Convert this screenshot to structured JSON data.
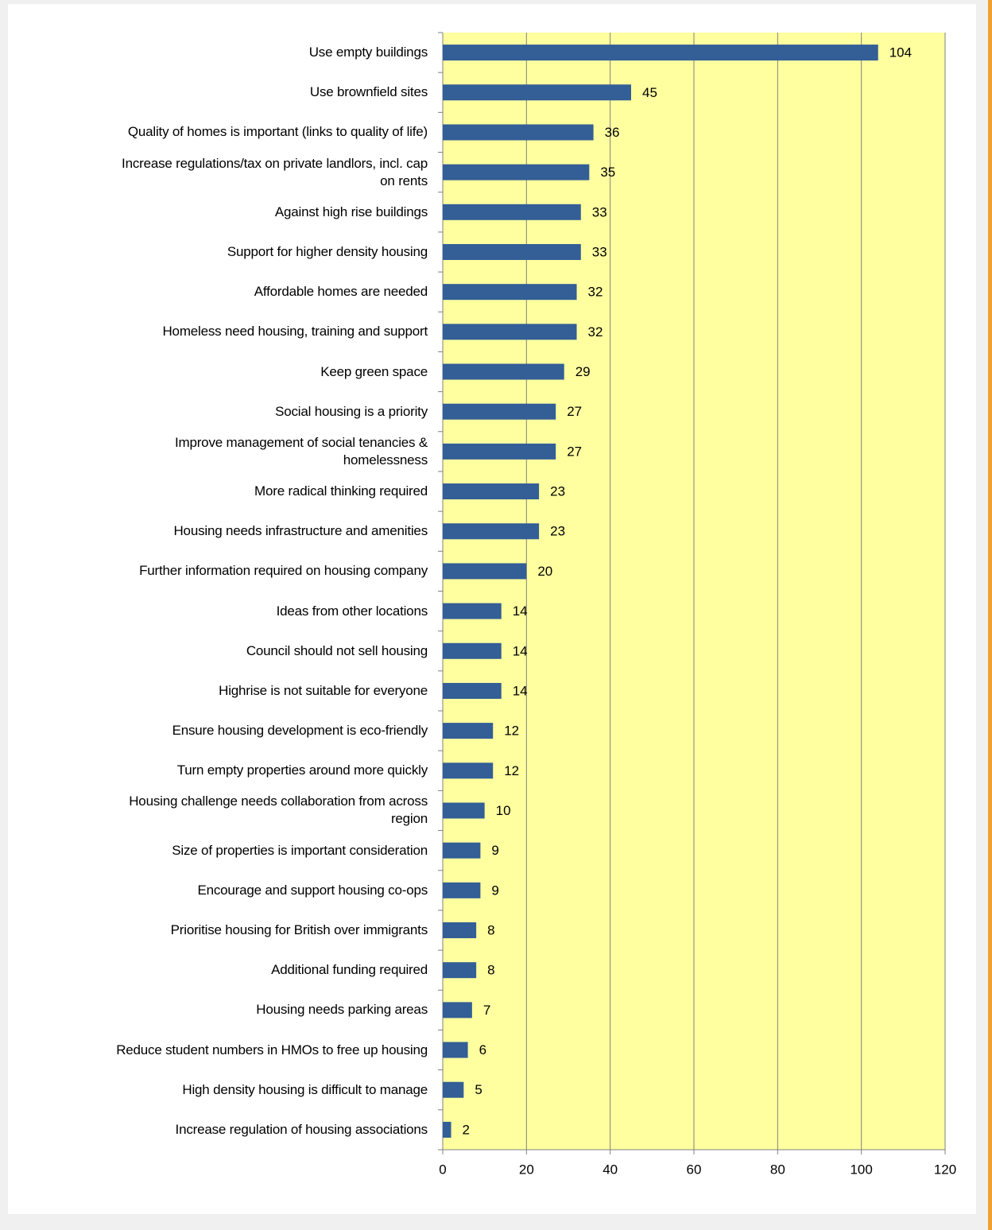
{
  "chart_data": {
    "type": "barh",
    "categories": [
      "Use empty buildings",
      "Use brownfield sites",
      "Quality of homes is important (links to quality of life)",
      "Increase regulations/tax on private landlors, incl. cap\non rents",
      "Against high rise buildings",
      "Support for higher density housing",
      "Affordable homes are needed",
      "Homeless need housing, training and support",
      "Keep green space",
      "Social housing is a priority",
      "Improve management of social tenancies &\nhomelessness",
      "More radical thinking required",
      "Housing needs infrastructure and amenities",
      "Further information required on housing company",
      "Ideas from other locations",
      "Council should not sell housing",
      "Highrise is not suitable for everyone",
      "Ensure housing development is eco-friendly",
      "Turn empty properties around more quickly",
      "Housing challenge needs collaboration from across\nregion",
      "Size of properties is important consideration",
      "Encourage and support housing co-ops",
      "Prioritise housing for British over immigrants",
      "Additional funding required",
      "Housing needs parking areas",
      "Reduce student numbers in HMOs to free up housing",
      "High density housing is difficult to manage",
      "Increase regulation of housing associations"
    ],
    "values": [
      104,
      45,
      36,
      35,
      33,
      33,
      32,
      32,
      29,
      27,
      27,
      23,
      23,
      20,
      14,
      14,
      14,
      12,
      12,
      10,
      9,
      9,
      8,
      8,
      7,
      6,
      5,
      2
    ],
    "color": "#335e96",
    "xlim": [
      0,
      120
    ],
    "xticks": [
      0,
      20,
      40,
      60,
      80,
      100,
      120
    ],
    "grid": true
  }
}
